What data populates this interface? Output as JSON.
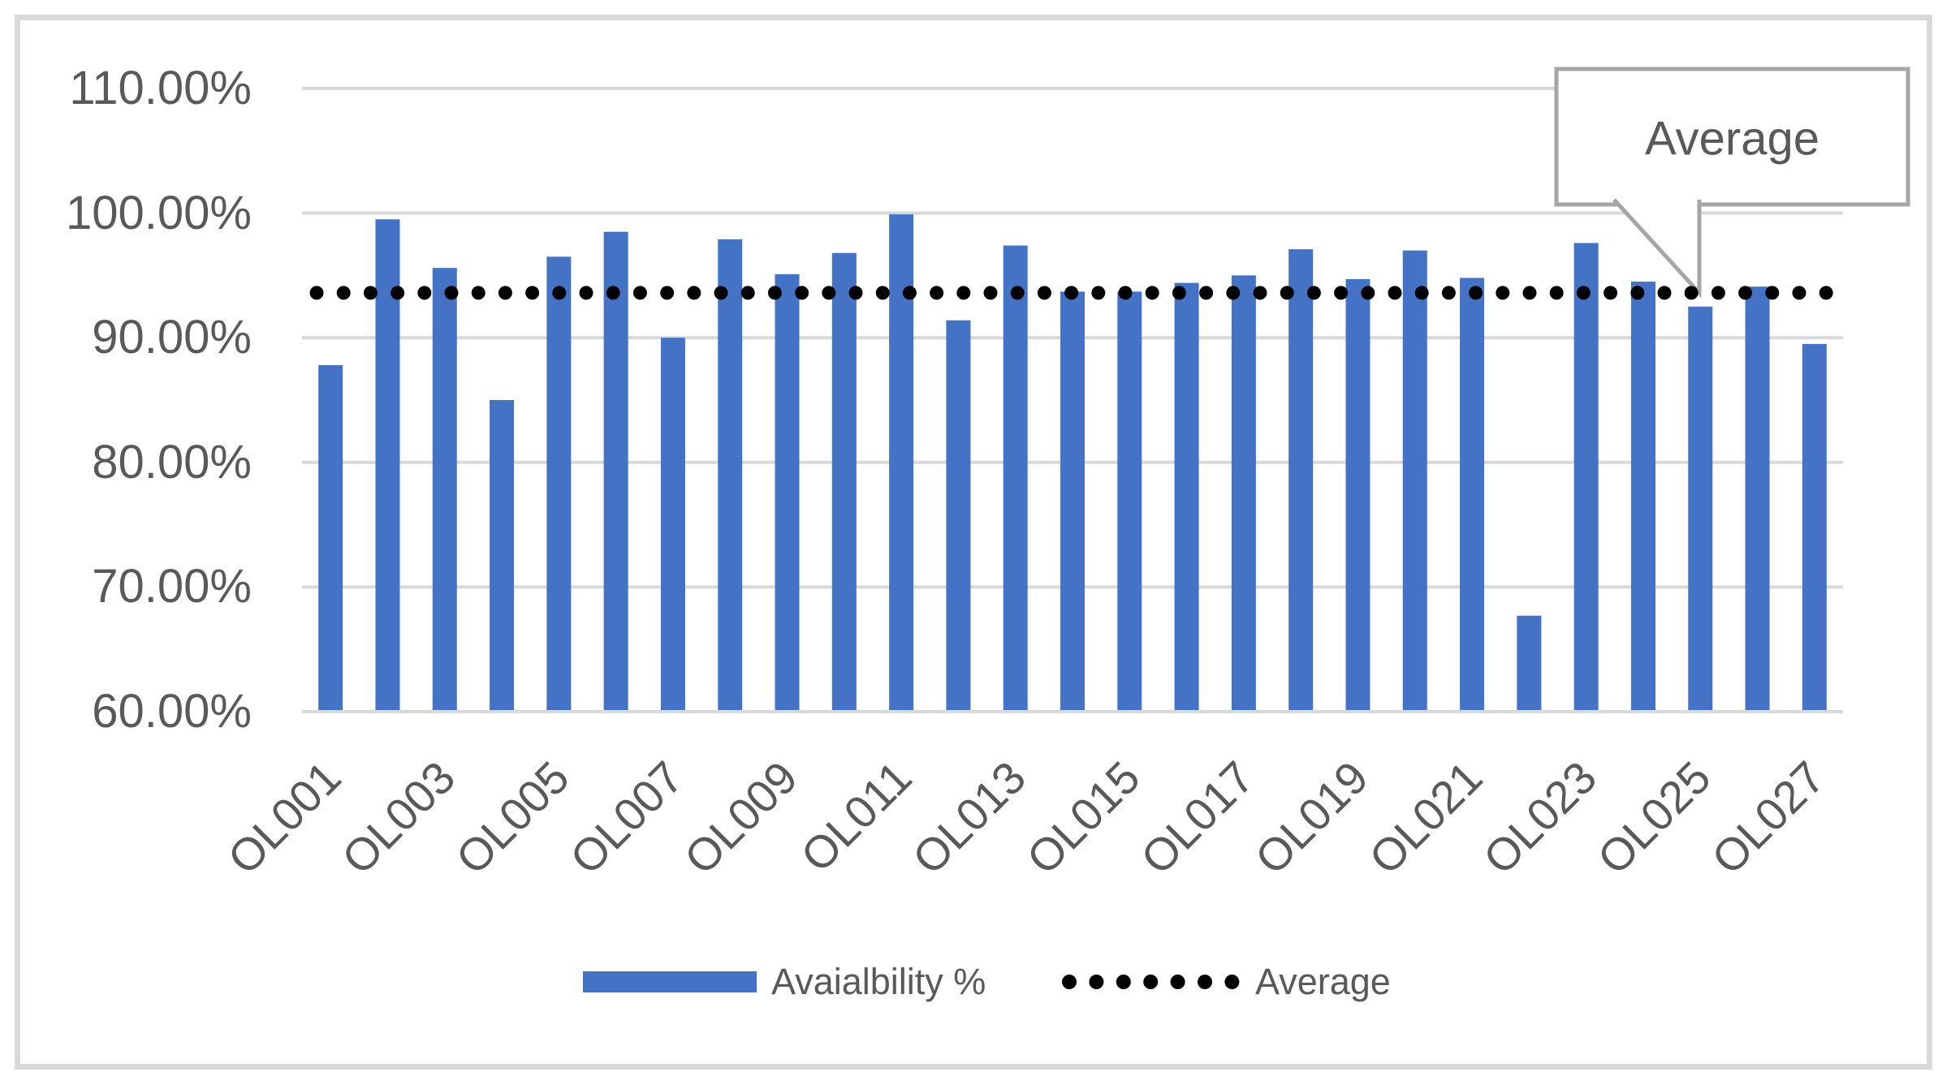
{
  "chart_data": {
    "type": "bar",
    "title": "",
    "categories": [
      "OL001",
      "OL002",
      "OL003",
      "OL004",
      "OL005",
      "OL006",
      "OL007",
      "OL008",
      "OL009",
      "OL010",
      "OL011",
      "OL012",
      "OL013",
      "OL014",
      "OL015",
      "OL016",
      "OL017",
      "OL018",
      "OL019",
      "OL020",
      "OL021",
      "OL022",
      "OL023",
      "OL024",
      "OL025",
      "OL026",
      "OL027"
    ],
    "series": [
      {
        "name": "Avaialbility %",
        "type": "bar",
        "color": "#4472C4",
        "values": [
          87.8,
          99.5,
          95.6,
          85.0,
          96.5,
          98.5,
          90.0,
          97.9,
          95.1,
          96.8,
          99.9,
          91.4,
          97.4,
          93.7,
          93.7,
          94.4,
          95.0,
          97.1,
          94.7,
          97.0,
          94.8,
          67.7,
          97.6,
          94.5,
          92.5,
          94.1,
          89.5
        ]
      },
      {
        "name": "Average",
        "type": "dotted-constant-line",
        "color": "#000000",
        "value": 93.6
      }
    ],
    "ylim": [
      60,
      110
    ],
    "yticks": [
      110,
      100,
      90,
      80,
      70,
      60
    ],
    "ytick_labels": [
      "110.00%",
      "100.00%",
      "90.00%",
      "80.00%",
      "70.00%",
      "60.00%"
    ],
    "xtick_labels_shown": [
      "OL001",
      "OL003",
      "OL005",
      "OL007",
      "OL009",
      "OL011",
      "OL013",
      "OL015",
      "OL017",
      "OL019",
      "OL021",
      "OL023",
      "OL025",
      "OL027"
    ],
    "xlabel": "",
    "ylabel": "",
    "grid": true,
    "legend_position": "bottom"
  },
  "legend": {
    "bar_label": "Avaialbility %",
    "average_label": "Average"
  },
  "callout": {
    "label": "Average"
  },
  "colors": {
    "bar": "#4472C4",
    "gridline": "#D9D9D9",
    "axis_text": "#595959",
    "dotted_line": "#000000",
    "callout_border": "#A6A6A6",
    "callout_text": "#595959",
    "frame_border": "#D9D9D9",
    "background": "#FFFFFF"
  }
}
